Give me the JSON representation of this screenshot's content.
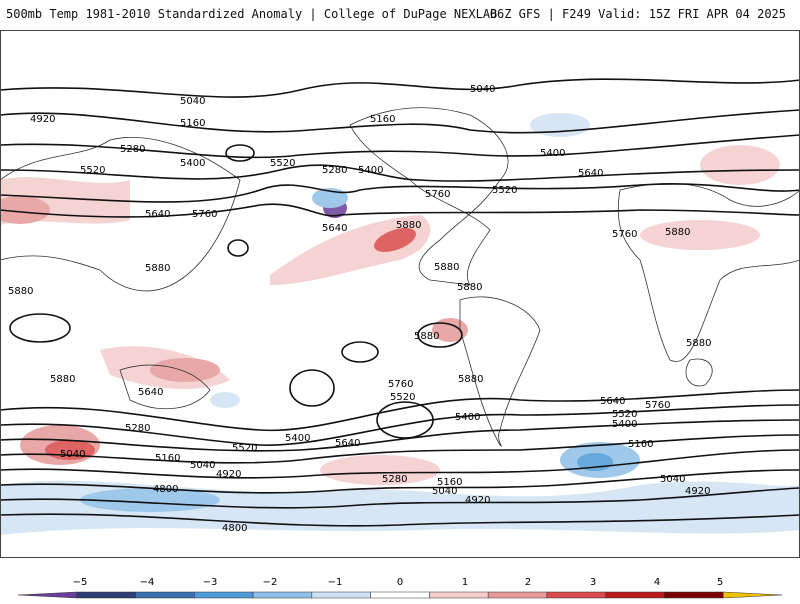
{
  "header": {
    "left_title": "500mb Temp 1981-2010 Standardized Anomaly | College of DuPage NEXLAB",
    "right_info": "06Z GFS | F249 Valid: 15Z FRI APR 04 2025"
  },
  "map": {
    "projection": "global-cylindrical",
    "contour_labels": [
      "4920",
      "5040",
      "5160",
      "5040",
      "5160",
      "5280",
      "5160",
      "5280",
      "5400",
      "5520",
      "5400",
      "5280",
      "5400",
      "5520",
      "5640",
      "5760",
      "5640",
      "5760",
      "5880",
      "5520",
      "5640",
      "5880",
      "5880",
      "5760",
      "5880",
      "5880",
      "5880",
      "5880",
      "5880",
      "5880",
      "5880",
      "5760",
      "5640",
      "5520",
      "5400",
      "5640",
      "5760",
      "5520",
      "5400",
      "5640",
      "5520",
      "5400",
      "5280",
      "5160",
      "5040",
      "4920",
      "4800",
      "4800",
      "5040",
      "5160",
      "5280",
      "5160",
      "5040",
      "4920",
      "5160",
      "5040",
      "4920",
      "5040",
      "4920",
      "5640",
      "5760",
      "5880",
      "5880",
      "5880",
      "5880"
    ]
  },
  "colorbar": {
    "ticks": [
      "−5",
      "−4",
      "−3",
      "−2",
      "−1",
      "0",
      "1",
      "2",
      "3",
      "4",
      "5"
    ],
    "colors": [
      "#6a3d9a",
      "#2c3f73",
      "#3a6fb0",
      "#4f9ad6",
      "#8fc0e8",
      "#cfe2f3",
      "#ffffff",
      "#f4cccc",
      "#e59999",
      "#d94a4a",
      "#b81c1c",
      "#7a0000",
      "#f3c200"
    ]
  }
}
